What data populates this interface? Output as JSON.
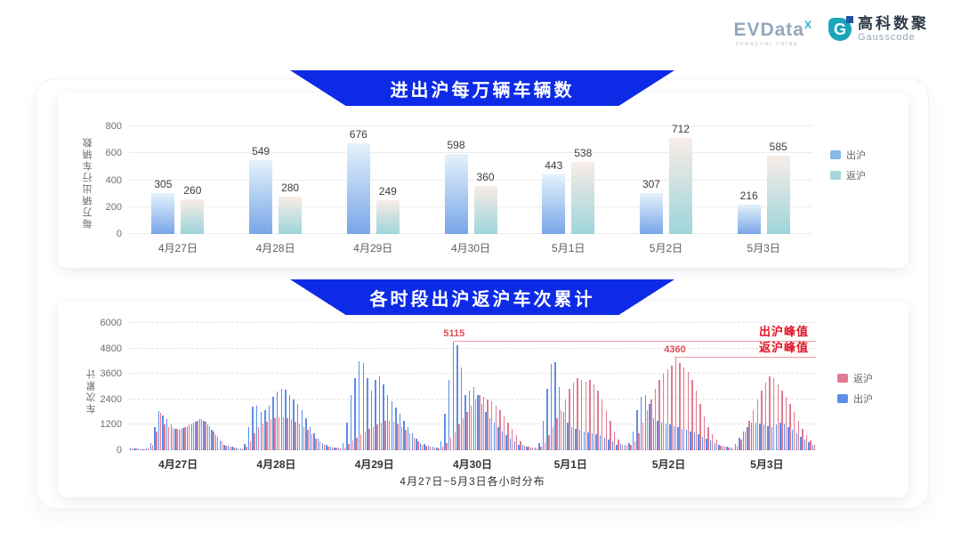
{
  "header": {
    "evdata": {
      "text": "EVData",
      "superscript": "X",
      "subtext": "SHANGHAI CHINA"
    },
    "gausscode": {
      "icon_letter": "G",
      "cn": "高科数聚",
      "en": "Gausscode"
    }
  },
  "colors": {
    "banner_blue": "#0d2be6",
    "annotation_red": "#e01426",
    "peak_line_red": "#ee9aa2",
    "chart1_exit_gradient": [
      "#e4f2fb",
      "#79a6e8"
    ],
    "chart1_return_gradient": [
      "#f9ece7",
      "#9dd5da"
    ],
    "chart2_exit_blue": "#5c8de8",
    "chart2_return_pink": "#df7b90"
  },
  "chart_data": [
    {
      "type": "bar",
      "title": "进出沪每万辆车辆数",
      "ylabel": "每万辆出行车辆数",
      "ylim": [
        0,
        800
      ],
      "yticks": [
        0,
        200,
        400,
        600,
        800
      ],
      "grid": "solid",
      "legend_position": "right",
      "categories": [
        "4月27日",
        "4月28日",
        "4月29日",
        "4月30日",
        "5月1日",
        "5月2日",
        "5月3日"
      ],
      "series": [
        {
          "name": "出沪",
          "legend_color": "#84b9ea",
          "gradient_top": "#e4f2fb",
          "gradient_bottom": "#79a6e8",
          "values": [
            305,
            549,
            676,
            598,
            443,
            307,
            216
          ]
        },
        {
          "name": "返沪",
          "legend_color": "#a5d6da",
          "gradient_top": "#f9ece7",
          "gradient_bottom": "#9dd5da",
          "values": [
            260,
            280,
            249,
            360,
            538,
            712,
            585
          ]
        }
      ]
    },
    {
      "type": "bar",
      "title": "各时段出沪返沪车次累计",
      "ylabel": "车次累计",
      "xlabel": "4月27日~5月3日各小时分布",
      "ylim": [
        0,
        6000
      ],
      "yticks": [
        0,
        1200,
        2400,
        3600,
        4800,
        6000
      ],
      "grid": "dashed",
      "legend_position": "right",
      "hours_per_day": 24,
      "categories": [
        "4月27日",
        "4月28日",
        "4月29日",
        "4月30日",
        "5月1日",
        "5月2日",
        "5月3日"
      ],
      "series": [
        {
          "name": "出沪",
          "color": "#5c8de8",
          "values_by_day": [
            [
              120,
              90,
              70,
              60,
              90,
              350,
              1100,
              1850,
              1650,
              1450,
              1200,
              1000,
              950,
              1050,
              1150,
              1250,
              1350,
              1450,
              1400,
              1200,
              950,
              700,
              450,
              250
            ],
            [
              200,
              150,
              120,
              100,
              300,
              1100,
              2050,
              2100,
              1800,
              1900,
              2100,
              2500,
              2750,
              2900,
              2850,
              2600,
              2400,
              2200,
              1900,
              1500,
              1100,
              800,
              550,
              350
            ],
            [
              250,
              180,
              140,
              120,
              350,
              1300,
              2600,
              3400,
              4200,
              4100,
              3400,
              2800,
              3300,
              3500,
              3100,
              2600,
              2300,
              2000,
              1700,
              1400,
              1100,
              800,
              550,
              320
            ],
            [
              300,
              200,
              150,
              130,
              400,
              1700,
              3300,
              5115,
              4950,
              3900,
              2600,
              2800,
              3000,
              2600,
              2200,
              1800,
              1500,
              1300,
              1100,
              900,
              700,
              550,
              400,
              250
            ],
            [
              250,
              180,
              140,
              120,
              350,
              1400,
              2900,
              4050,
              4150,
              3000,
              1800,
              1300,
              1100,
              1000,
              950,
              900,
              850,
              800,
              750,
              700,
              600,
              500,
              400,
              250
            ],
            [
              300,
              250,
              350,
              900,
              1900,
              2500,
              2600,
              2200,
              1500,
              1400,
              1300,
              1250,
              1200,
              1150,
              1100,
              1000,
              950,
              900,
              850,
              750,
              650,
              550,
              450,
              350
            ],
            [
              250,
              200,
              150,
              130,
              300,
              600,
              900,
              1100,
              1300,
              1300,
              1250,
              1200,
              1150,
              1100,
              1200,
              1300,
              1250,
              1100,
              950,
              800,
              650,
              500,
              380,
              250
            ]
          ]
        },
        {
          "name": "返沪",
          "color": "#df7b90",
          "values_by_day": [
            [
              100,
              80,
              60,
              50,
              70,
              250,
              900,
              1750,
              1200,
              1100,
              1050,
              1000,
              1000,
              1100,
              1200,
              1300,
              1400,
              1450,
              1350,
              1150,
              900,
              650,
              400,
              220
            ],
            [
              150,
              120,
              100,
              80,
              150,
              400,
              800,
              1100,
              1250,
              1350,
              1450,
              1500,
              1550,
              1550,
              1500,
              1450,
              1350,
              1250,
              1100,
              950,
              750,
              550,
              400,
              250
            ],
            [
              180,
              140,
              110,
              90,
              130,
              280,
              450,
              600,
              750,
              900,
              1000,
              1100,
              1200,
              1300,
              1400,
              1400,
              1350,
              1250,
              1100,
              950,
              780,
              580,
              400,
              240
            ],
            [
              200,
              150,
              120,
              100,
              150,
              350,
              600,
              900,
              1200,
              1500,
              1800,
              2100,
              2400,
              2600,
              2500,
              2400,
              2300,
              2100,
              1900,
              1600,
              1300,
              1000,
              700,
              400
            ],
            [
              200,
              150,
              120,
              100,
              150,
              350,
              700,
              1100,
              1500,
              1900,
              2400,
              2900,
              3200,
              3400,
              3300,
              3250,
              3300,
              3100,
              2800,
              2400,
              1900,
              1400,
              900,
              500
            ],
            [
              250,
              200,
              250,
              400,
              800,
              1300,
              1900,
              2400,
              2900,
              3300,
              3600,
              3800,
              4000,
              4360,
              4100,
              3900,
              3700,
              3300,
              2800,
              2200,
              1600,
              1100,
              750,
              500
            ],
            [
              200,
              150,
              120,
              100,
              200,
              500,
              900,
              1400,
              1900,
              2400,
              2800,
              3200,
              3500,
              3400,
              3100,
              2800,
              2500,
              2200,
              1800,
              1400,
              1000,
              700,
              450,
              250
            ]
          ]
        }
      ],
      "legend_order": [
        "返沪",
        "出沪"
      ],
      "annotations": [
        {
          "label": "出沪峰值",
          "value": 5115,
          "value_label": "5115",
          "day_index": 3,
          "hour": 7,
          "series": "出沪"
        },
        {
          "label": "返沪峰值",
          "value": 4360,
          "value_label": "4360",
          "day_index": 5,
          "hour": 13,
          "series": "返沪"
        }
      ]
    }
  ]
}
